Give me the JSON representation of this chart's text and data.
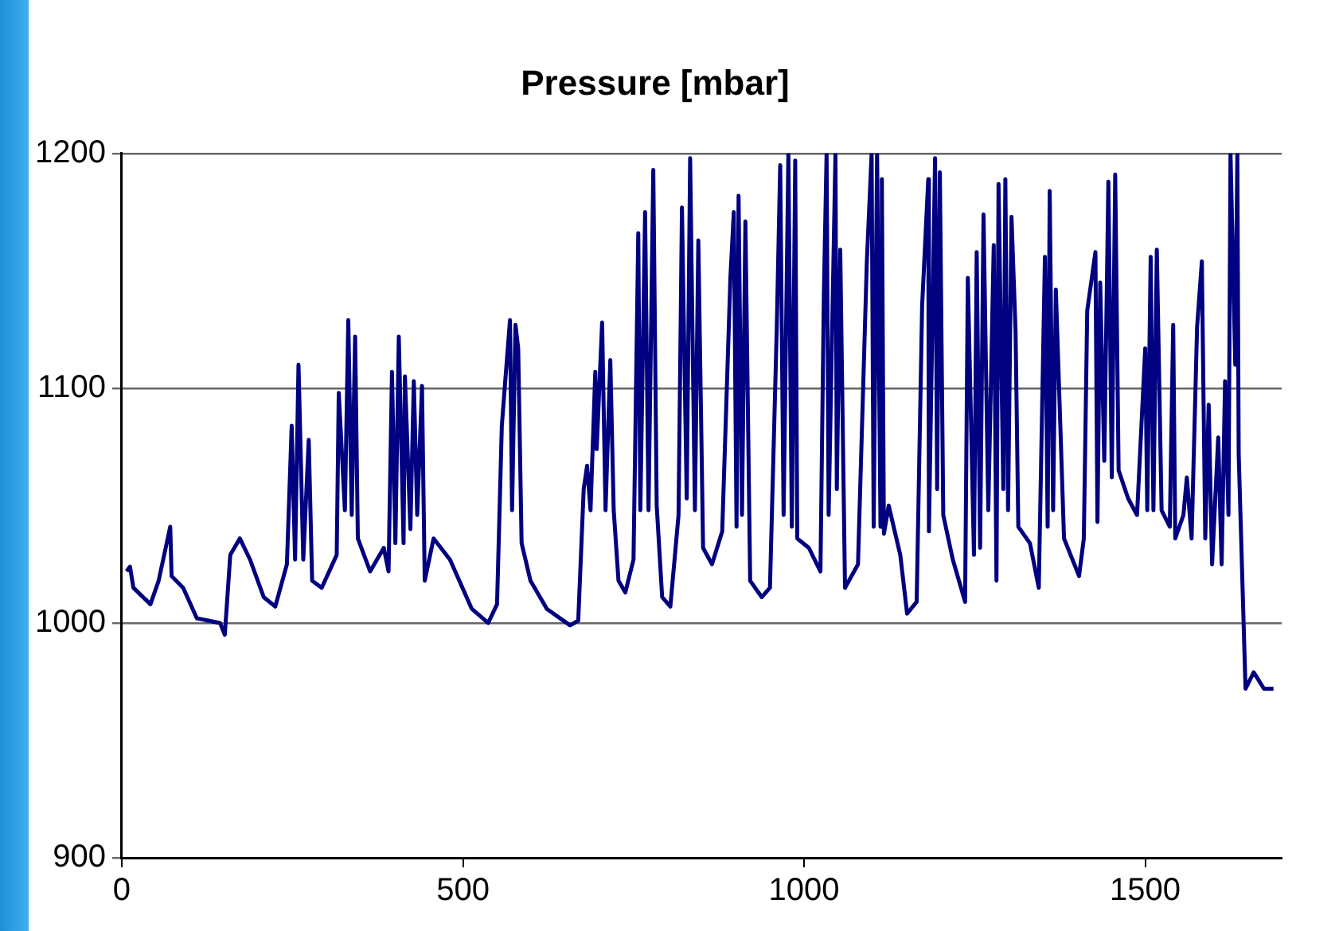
{
  "chart_data": {
    "type": "line",
    "title": "Pressure [mbar]",
    "x": [
      7,
      12,
      17,
      42,
      54,
      71,
      73,
      90,
      110,
      144,
      151,
      159,
      173,
      188,
      208,
      225,
      242,
      249,
      254,
      259,
      266,
      274,
      279,
      293,
      315,
      318,
      327,
      332,
      337,
      342,
      346,
      364,
      384,
      391,
      396,
      401,
      406,
      413,
      415,
      423,
      428,
      433,
      440,
      444,
      457,
      481,
      513,
      537,
      550,
      557,
      562,
      569,
      572,
      577,
      581,
      586,
      599,
      623,
      657,
      669,
      677,
      682,
      687,
      694,
      696,
      704,
      709,
      716,
      721,
      728,
      738,
      750,
      757,
      760,
      767,
      772,
      779,
      784,
      792,
      804,
      816,
      821,
      828,
      833,
      840,
      845,
      852,
      865,
      880,
      892,
      897,
      901,
      904,
      909,
      914,
      921,
      938,
      950,
      960,
      965,
      970,
      977,
      982,
      987,
      990,
      1007,
      1024,
      1029,
      1033,
      1036,
      1046,
      1048,
      1053,
      1060,
      1079,
      1092,
      1099,
      1102,
      1107,
      1112,
      1114,
      1117,
      1124,
      1141,
      1151,
      1165,
      1173,
      1182,
      1183,
      1192,
      1195,
      1199,
      1204,
      1218,
      1236,
      1240,
      1249,
      1253,
      1258,
      1263,
      1270,
      1278,
      1282,
      1285,
      1292,
      1295,
      1299,
      1304,
      1310,
      1314,
      1331,
      1344,
      1353,
      1357,
      1360,
      1365,
      1369,
      1381,
      1403,
      1410,
      1415,
      1427,
      1430,
      1434,
      1440,
      1446,
      1451,
      1456,
      1461,
      1475,
      1488,
      1500,
      1503,
      1508,
      1512,
      1517,
      1524,
      1536,
      1541,
      1544,
      1556,
      1561,
      1568,
      1576,
      1583,
      1588,
      1593,
      1598,
      1607,
      1612,
      1617,
      1622,
      1625,
      1632,
      1635,
      1637,
      1647,
      1659,
      1674,
      1688
    ],
    "series": [
      {
        "color": "#000080",
        "values": [
          1022,
          1024,
          1015,
          1008,
          1018,
          1041,
          1020,
          1015,
          1002,
          1000,
          995,
          1029,
          1036,
          1027,
          1011,
          1007,
          1025,
          1084,
          1027,
          1110,
          1027,
          1078,
          1018,
          1015,
          1029,
          1098,
          1048,
          1129,
          1046,
          1122,
          1036,
          1022,
          1032,
          1022,
          1107,
          1034,
          1122,
          1034,
          1105,
          1040,
          1103,
          1046,
          1101,
          1018,
          1036,
          1027,
          1006,
          1000,
          1008,
          1084,
          1103,
          1129,
          1048,
          1127,
          1117,
          1034,
          1018,
          1006,
          999,
          1001,
          1057,
          1067,
          1048,
          1107,
          1074,
          1128,
          1048,
          1112,
          1048,
          1018,
          1013,
          1027,
          1166,
          1048,
          1175,
          1048,
          1193,
          1050,
          1011,
          1007,
          1046,
          1177,
          1053,
          1198,
          1048,
          1163,
          1032,
          1025,
          1039,
          1147,
          1175,
          1041,
          1182,
          1046,
          1171,
          1018,
          1011,
          1015,
          1126,
          1195,
          1046,
          1200,
          1041,
          1197,
          1036,
          1032,
          1022,
          1140,
          1200,
          1046,
          1200,
          1057,
          1159,
          1015,
          1025,
          1154,
          1200,
          1041,
          1200,
          1041,
          1189,
          1038,
          1050,
          1029,
          1004,
          1009,
          1135,
          1189,
          1039,
          1198,
          1057,
          1192,
          1046,
          1027,
          1009,
          1147,
          1029,
          1158,
          1032,
          1174,
          1048,
          1161,
          1018,
          1187,
          1057,
          1189,
          1048,
          1173,
          1124,
          1041,
          1034,
          1015,
          1156,
          1041,
          1184,
          1048,
          1142,
          1036,
          1020,
          1036,
          1133,
          1158,
          1043,
          1145,
          1069,
          1188,
          1062,
          1191,
          1065,
          1053,
          1046,
          1117,
          1048,
          1156,
          1048,
          1159,
          1048,
          1041,
          1127,
          1036,
          1046,
          1062,
          1036,
          1126,
          1154,
          1036,
          1093,
          1025,
          1079,
          1025,
          1103,
          1046,
          1200,
          1110,
          1200,
          1072,
          972,
          979,
          972,
          972
        ]
      }
    ],
    "xlim": [
      0,
      1700
    ],
    "xticks": [
      0,
      500,
      1000,
      1500
    ],
    "ylim": [
      900,
      1200
    ],
    "yticks": [
      900,
      1000,
      1100,
      1200
    ],
    "grid": "y",
    "legend": false,
    "marker": "none",
    "line_style": "solid"
  }
}
